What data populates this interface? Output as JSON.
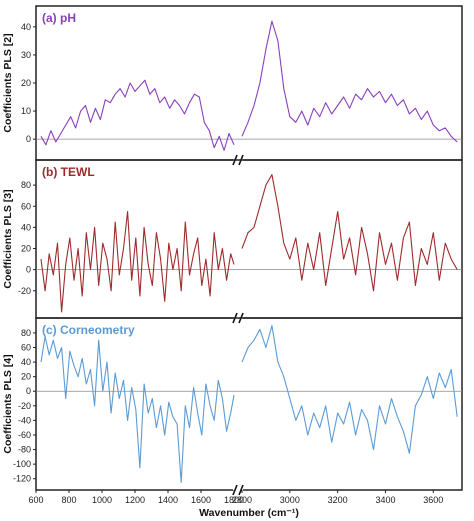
{
  "chart_data": {
    "type": "line",
    "xlabel": "Wavenumber (cm⁻¹)",
    "x_ticks": [
      "600",
      "800",
      "1000",
      "1200",
      "1400",
      "1600",
      "1800",
      "2800",
      "3000",
      "3200",
      "3400",
      "3600"
    ],
    "x_break": [
      1800,
      2800
    ],
    "panels": [
      {
        "title": "(a) pH",
        "ylabel": "Coefficients PLS [2]",
        "color": "#8a3fbd",
        "ylim": [
          -6,
          46
        ],
        "y_ticks": [
          0,
          10,
          20,
          30,
          40
        ],
        "series": [
          {
            "x": [
              630,
              660,
              690,
              720,
              750,
              780,
              810,
              840,
              870,
              900,
              930,
              960,
              990,
              1020,
              1050,
              1080,
              1110,
              1140,
              1170,
              1200,
              1230,
              1260,
              1290,
              1320,
              1350,
              1380,
              1410,
              1440,
              1470,
              1500,
              1530,
              1560,
              1590,
              1620,
              1650,
              1680,
              1710,
              1740,
              1770,
              1800
            ],
            "y": [
              1,
              -2,
              3,
              -1,
              2,
              5,
              8,
              4,
              10,
              12,
              6,
              11,
              7,
              14,
              13,
              16,
              18,
              15,
              20,
              17,
              19,
              21,
              16,
              18,
              13,
              15,
              11,
              14,
              12,
              9,
              13,
              16,
              15,
              6,
              3,
              -3,
              1,
              -4,
              2,
              -2
            ]
          },
          {
            "x": [
              2800,
              2825,
              2850,
              2875,
              2900,
              2925,
              2950,
              2975,
              3000,
              3025,
              3050,
              3075,
              3100,
              3125,
              3150,
              3175,
              3200,
              3225,
              3250,
              3275,
              3300,
              3325,
              3350,
              3375,
              3400,
              3425,
              3450,
              3475,
              3500,
              3525,
              3550,
              3575,
              3600,
              3625,
              3650,
              3675,
              3700
            ],
            "y": [
              1,
              6,
              12,
              20,
              32,
              42,
              35,
              18,
              8,
              6,
              10,
              5,
              11,
              8,
              13,
              9,
              12,
              15,
              11,
              16,
              14,
              18,
              15,
              17,
              13,
              16,
              12,
              14,
              9,
              11,
              7,
              10,
              5,
              3,
              4,
              1,
              -1
            ]
          }
        ]
      },
      {
        "title": "(b) TEWL",
        "ylabel": "Coefficients PLS [3]",
        "color": "#9e2b2b",
        "ylim": [
          -42,
          100
        ],
        "y_ticks": [
          -20,
          0,
          20,
          40,
          60,
          80
        ],
        "series": [
          {
            "x": [
              630,
              655,
              680,
              705,
              730,
              755,
              780,
              805,
              830,
              855,
              880,
              905,
              930,
              955,
              980,
              1005,
              1030,
              1055,
              1080,
              1105,
              1130,
              1155,
              1180,
              1205,
              1230,
              1255,
              1280,
              1305,
              1330,
              1355,
              1380,
              1405,
              1430,
              1455,
              1480,
              1505,
              1530,
              1555,
              1580,
              1605,
              1630,
              1655,
              1680,
              1705,
              1730,
              1755,
              1780,
              1800
            ],
            "y": [
              10,
              -20,
              15,
              -5,
              25,
              -40,
              5,
              30,
              -10,
              20,
              -25,
              35,
              0,
              40,
              -15,
              25,
              10,
              -20,
              45,
              -5,
              20,
              55,
              -10,
              30,
              -25,
              40,
              5,
              -15,
              35,
              10,
              -30,
              25,
              0,
              20,
              -20,
              45,
              -5,
              15,
              30,
              -15,
              10,
              -25,
              35,
              0,
              20,
              -10,
              15,
              5
            ]
          },
          {
            "x": [
              2800,
              2825,
              2850,
              2875,
              2900,
              2925,
              2950,
              2975,
              3000,
              3025,
              3050,
              3075,
              3100,
              3125,
              3150,
              3175,
              3200,
              3225,
              3250,
              3275,
              3300,
              3325,
              3350,
              3375,
              3400,
              3425,
              3450,
              3475,
              3500,
              3525,
              3550,
              3575,
              3600,
              3625,
              3650,
              3675,
              3700
            ],
            "y": [
              20,
              35,
              40,
              60,
              80,
              90,
              60,
              25,
              10,
              30,
              -10,
              25,
              0,
              35,
              -15,
              20,
              55,
              10,
              30,
              -5,
              40,
              15,
              -20,
              35,
              5,
              25,
              -10,
              30,
              45,
              -15,
              20,
              5,
              35,
              -10,
              25,
              10,
              0
            ]
          }
        ]
      },
      {
        "title": "(c) Corneometry",
        "ylabel": "Coefficients PLS [4]",
        "color": "#5b9bd5",
        "ylim": [
          -130,
          95
        ],
        "y_ticks": [
          -120,
          -100,
          -80,
          -60,
          -40,
          -20,
          0,
          20,
          40,
          60,
          80
        ],
        "series": [
          {
            "x": [
              630,
              655,
              680,
              705,
              730,
              755,
              780,
              805,
              830,
              855,
              880,
              905,
              930,
              955,
              980,
              1005,
              1030,
              1055,
              1080,
              1105,
              1130,
              1155,
              1180,
              1205,
              1230,
              1255,
              1280,
              1305,
              1330,
              1355,
              1380,
              1405,
              1430,
              1455,
              1480,
              1505,
              1530,
              1555,
              1580,
              1605,
              1630,
              1655,
              1680,
              1705,
              1730,
              1755,
              1780,
              1800
            ],
            "y": [
              40,
              75,
              50,
              70,
              45,
              60,
              -10,
              55,
              35,
              20,
              45,
              10,
              30,
              -20,
              70,
              0,
              40,
              -30,
              25,
              -10,
              15,
              -40,
              5,
              -25,
              -105,
              10,
              -30,
              -10,
              -50,
              -20,
              -60,
              -15,
              -35,
              -45,
              -125,
              -20,
              -50,
              5,
              -30,
              -60,
              10,
              -20,
              -40,
              15,
              -10,
              -55,
              -30,
              -5
            ]
          },
          {
            "x": [
              2800,
              2825,
              2850,
              2875,
              2900,
              2925,
              2950,
              2975,
              3000,
              3025,
              3050,
              3075,
              3100,
              3125,
              3150,
              3175,
              3200,
              3225,
              3250,
              3275,
              3300,
              3325,
              3350,
              3375,
              3400,
              3425,
              3450,
              3475,
              3500,
              3525,
              3550,
              3575,
              3600,
              3625,
              3650,
              3675,
              3700
            ],
            "y": [
              40,
              60,
              70,
              85,
              60,
              90,
              40,
              20,
              -10,
              -40,
              -20,
              -60,
              -30,
              -50,
              -20,
              -70,
              -30,
              -45,
              -15,
              -60,
              -25,
              -40,
              -80,
              -20,
              -45,
              -10,
              -35,
              -55,
              -85,
              -20,
              -5,
              20,
              -10,
              25,
              5,
              30,
              -35
            ]
          }
        ]
      }
    ]
  }
}
